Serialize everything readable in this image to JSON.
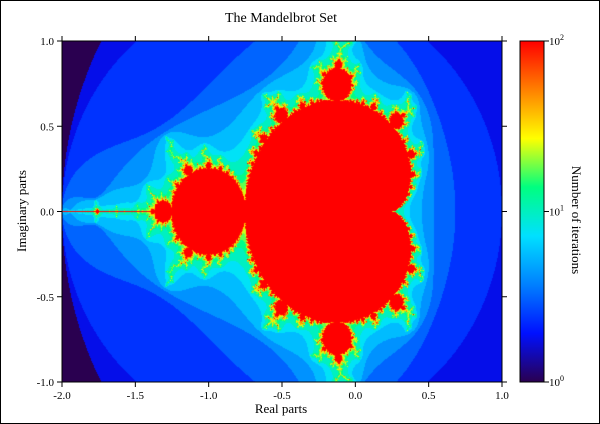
{
  "chart_data": {
    "type": "heatmap",
    "title": "The Mandelbrot Set",
    "xlabel": "Real parts",
    "ylabel": "Imaginary parts",
    "xlim": [
      -2.0,
      1.0
    ],
    "ylim": [
      -1.0,
      1.0
    ],
    "xticks": [
      -2.0,
      -1.5,
      -1.0,
      -0.5,
      0.0,
      0.5,
      1.0
    ],
    "xtick_labels": [
      "-2.0",
      "-1.5",
      "-1.0",
      "-0.5",
      "0.0",
      "0.5",
      "1.0"
    ],
    "yticks": [
      -1.0,
      -0.5,
      0.0,
      0.5,
      1.0
    ],
    "ytick_labels": [
      "-1.0",
      "-0.5",
      "0.0",
      "0.5",
      "1.0"
    ],
    "colorbar": {
      "label": "Number of iterations",
      "scale": "log",
      "range": [
        1,
        100
      ],
      "tick_values": [
        1,
        10,
        100
      ],
      "tick_base": "10",
      "tick_exponents": [
        "0",
        "1",
        "2"
      ],
      "colors": [
        "#2a0050",
        "#0010ff",
        "#0080ff",
        "#00e0ff",
        "#00ff80",
        "#ffff00",
        "#ff8000",
        "#ff0000"
      ]
    },
    "grid": false
  }
}
